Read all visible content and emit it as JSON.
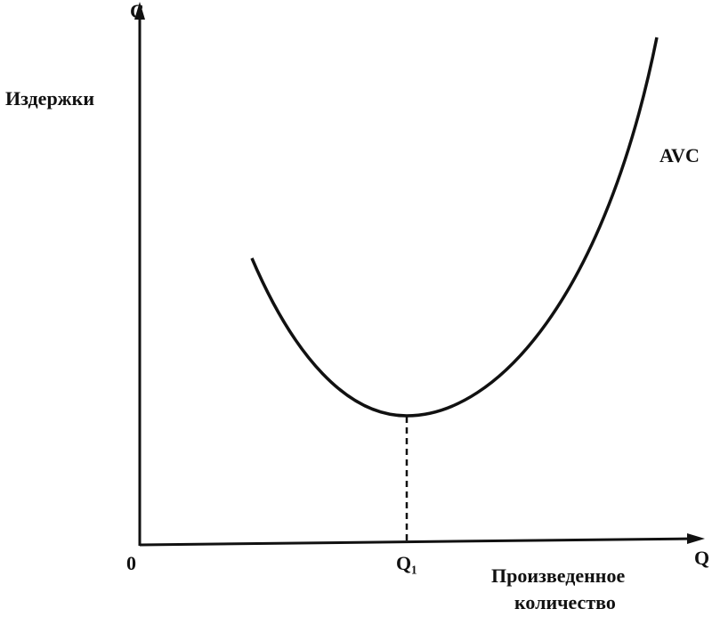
{
  "diagram": {
    "y_axis": {
      "symbol": "C",
      "label": "Издержки"
    },
    "x_axis": {
      "symbol": "Q",
      "label_lines": [
        "Произведенное",
        "количество"
      ]
    },
    "origin": "0",
    "min_point_label": "Q₁",
    "curve_label": "AVC"
  }
}
